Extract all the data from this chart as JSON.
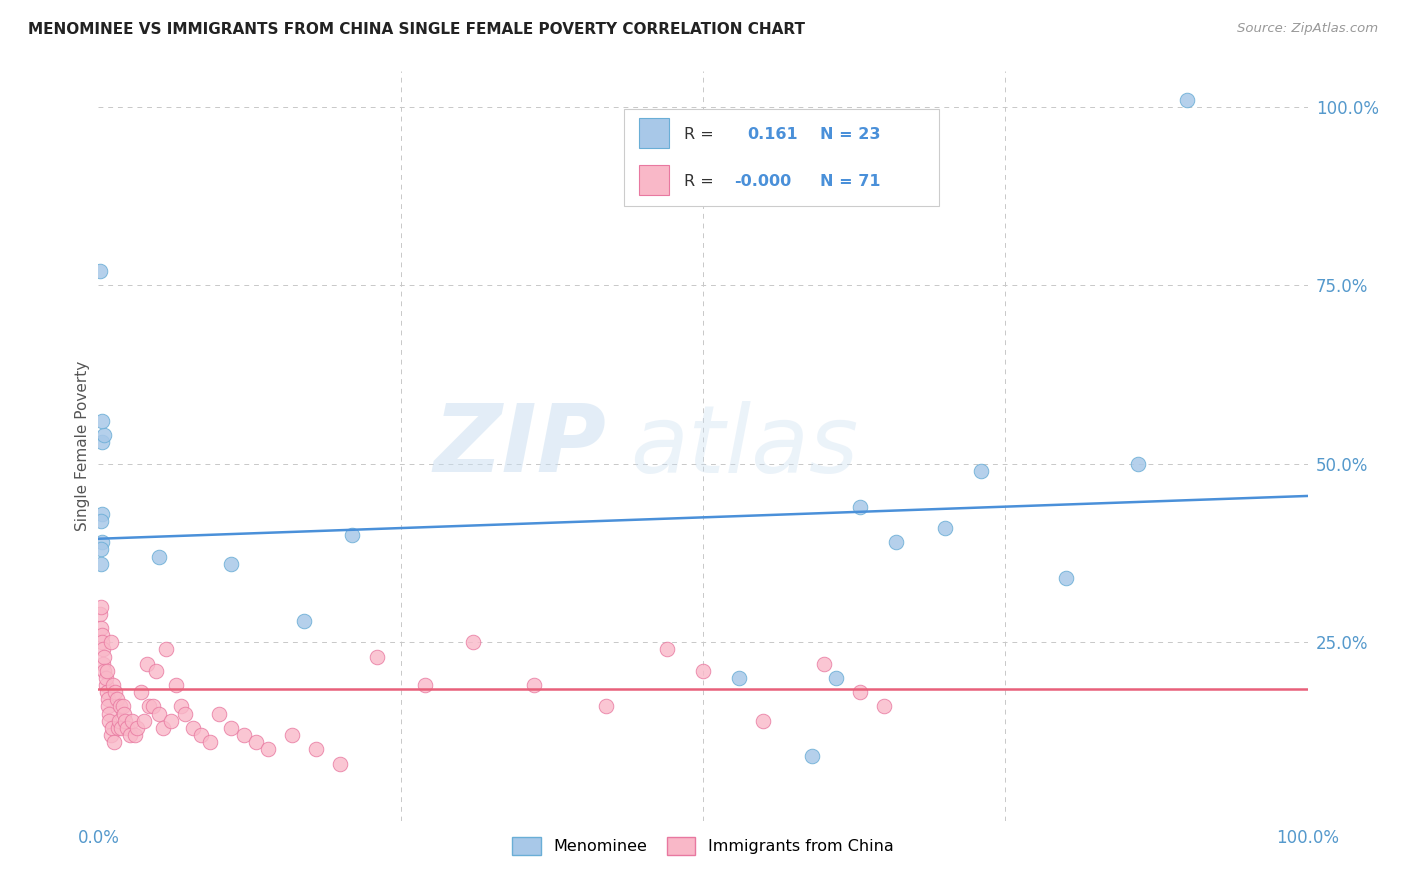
{
  "title": "MENOMINEE VS IMMIGRANTS FROM CHINA SINGLE FEMALE POVERTY CORRELATION CHART",
  "source": "Source: ZipAtlas.com",
  "ylabel": "Single Female Poverty",
  "legend_label1": "Menominee",
  "legend_label2": "Immigrants from China",
  "watermark_zip": "ZIP",
  "watermark_atlas": "atlas",
  "blue_scatter_color": "#a8c8e8",
  "blue_edge_color": "#6aaed6",
  "pink_scatter_color": "#f9b8c8",
  "pink_edge_color": "#e878a0",
  "blue_line_color": "#4a90d9",
  "pink_line_color": "#e8607a",
  "grid_color": "#c8c8c8",
  "menominee_x": [
    0.003,
    0.005,
    0.003,
    0.002,
    0.003,
    0.002,
    0.002,
    0.001,
    0.003,
    0.17,
    0.11,
    0.21,
    0.63,
    0.73,
    0.7,
    0.66,
    0.8,
    0.61,
    0.59,
    0.53,
    0.9,
    0.86,
    0.05
  ],
  "menominee_y": [
    0.53,
    0.54,
    0.43,
    0.42,
    0.39,
    0.38,
    0.36,
    0.77,
    0.56,
    0.28,
    0.36,
    0.4,
    0.44,
    0.49,
    0.41,
    0.39,
    0.34,
    0.2,
    0.09,
    0.2,
    1.01,
    0.5,
    0.37
  ],
  "china_x": [
    0.001,
    0.002,
    0.002,
    0.003,
    0.003,
    0.004,
    0.004,
    0.005,
    0.005,
    0.006,
    0.006,
    0.007,
    0.007,
    0.008,
    0.008,
    0.009,
    0.009,
    0.01,
    0.01,
    0.011,
    0.012,
    0.013,
    0.014,
    0.015,
    0.016,
    0.017,
    0.018,
    0.019,
    0.02,
    0.021,
    0.022,
    0.024,
    0.026,
    0.028,
    0.03,
    0.032,
    0.035,
    0.038,
    0.04,
    0.042,
    0.045,
    0.048,
    0.05,
    0.053,
    0.056,
    0.06,
    0.064,
    0.068,
    0.072,
    0.078,
    0.085,
    0.092,
    0.1,
    0.11,
    0.12,
    0.13,
    0.14,
    0.16,
    0.18,
    0.2,
    0.23,
    0.27,
    0.31,
    0.36,
    0.42,
    0.47,
    0.5,
    0.55,
    0.6,
    0.63,
    0.65
  ],
  "china_y": [
    0.29,
    0.3,
    0.27,
    0.26,
    0.25,
    0.24,
    0.22,
    0.23,
    0.21,
    0.19,
    0.2,
    0.21,
    0.18,
    0.17,
    0.16,
    0.15,
    0.14,
    0.25,
    0.12,
    0.13,
    0.19,
    0.11,
    0.18,
    0.17,
    0.13,
    0.14,
    0.16,
    0.13,
    0.16,
    0.15,
    0.14,
    0.13,
    0.12,
    0.14,
    0.12,
    0.13,
    0.18,
    0.14,
    0.22,
    0.16,
    0.16,
    0.21,
    0.15,
    0.13,
    0.24,
    0.14,
    0.19,
    0.16,
    0.15,
    0.13,
    0.12,
    0.11,
    0.15,
    0.13,
    0.12,
    0.11,
    0.1,
    0.12,
    0.1,
    0.08,
    0.23,
    0.19,
    0.25,
    0.19,
    0.16,
    0.24,
    0.21,
    0.14,
    0.22,
    0.18,
    0.16
  ],
  "xlim": [
    0.0,
    1.0
  ],
  "ylim": [
    0.0,
    1.05
  ],
  "blue_trend_start": 0.395,
  "blue_trend_end": 0.455,
  "pink_trend_y": 0.185,
  "background_color": "#ffffff"
}
